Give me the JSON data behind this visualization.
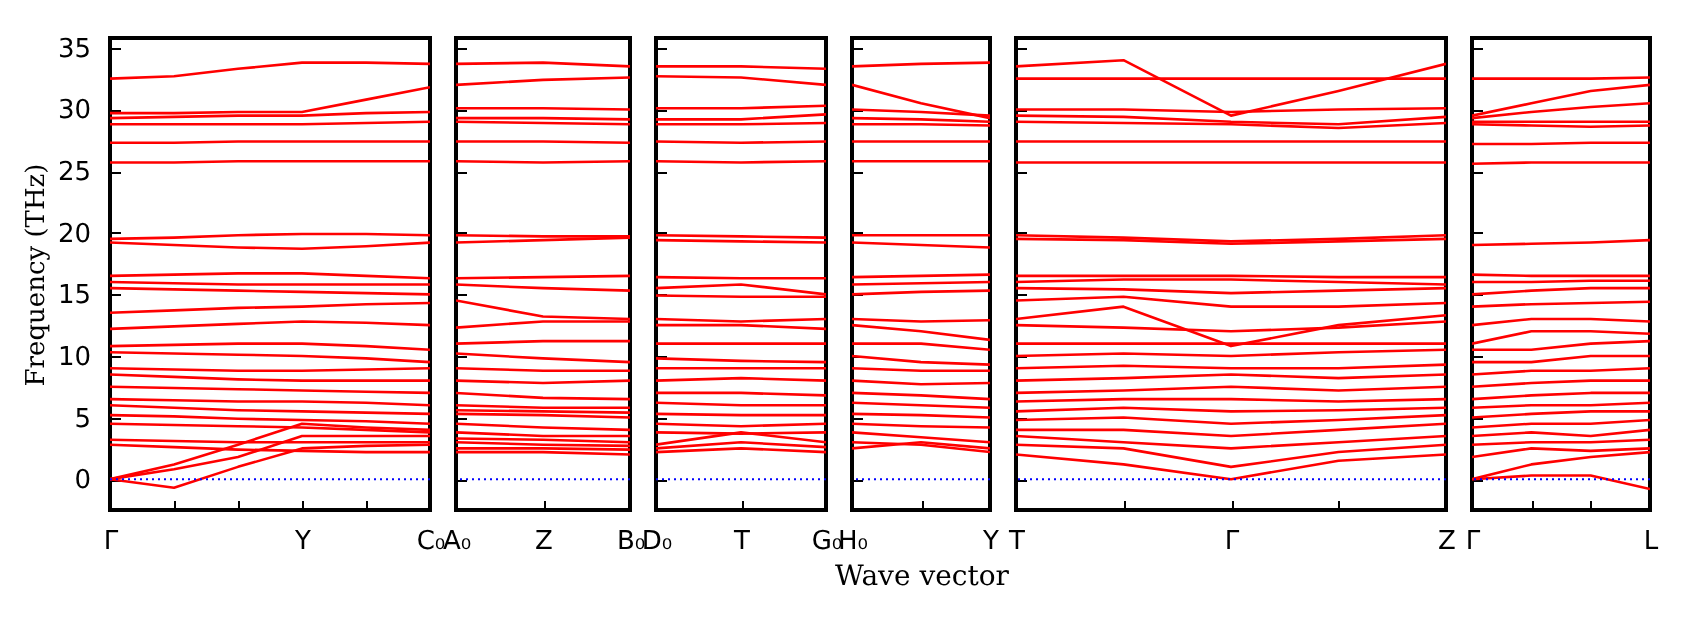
{
  "chart_data": [
    {
      "type": "line",
      "ylabel": "Frequency (THz)",
      "categories": [
        "Γ",
        null,
        null,
        "Y",
        null,
        "C₀"
      ],
      "ylim": [
        -2.5,
        35.8
      ],
      "yticks": [
        0,
        5,
        10,
        15,
        20,
        25,
        30,
        35
      ],
      "grid": false,
      "marker": "none",
      "line_style": "solid",
      "ref_lines": [
        {
          "axis": "y",
          "value": 0,
          "color": "#0000ff",
          "line_style": "dotted"
        }
      ],
      "series": [
        {
          "color": "#ff0000",
          "values": [
            32.5,
            32.7,
            33.3,
            33.8,
            33.8,
            33.7
          ]
        },
        {
          "color": "#ff0000",
          "values": [
            29.7,
            29.7,
            29.8,
            29.8,
            30.8,
            31.8
          ]
        },
        {
          "color": "#ff0000",
          "values": [
            29.3,
            29.4,
            29.5,
            29.5,
            29.7,
            29.8
          ]
        },
        {
          "color": "#ff0000",
          "values": [
            28.8,
            28.8,
            28.8,
            28.8,
            28.9,
            29.0
          ]
        },
        {
          "color": "#ff0000",
          "values": [
            27.3,
            27.3,
            27.4,
            27.4,
            27.4,
            27.4
          ]
        },
        {
          "color": "#ff0000",
          "values": [
            25.7,
            25.7,
            25.8,
            25.8,
            25.8,
            25.8
          ]
        },
        {
          "color": "#ff0000",
          "values": [
            19.5,
            19.6,
            19.8,
            19.9,
            19.9,
            19.8
          ]
        },
        {
          "color": "#ff0000",
          "values": [
            19.2,
            19.0,
            18.8,
            18.7,
            18.9,
            19.2
          ]
        },
        {
          "color": "#ff0000",
          "values": [
            16.5,
            16.6,
            16.7,
            16.7,
            16.5,
            16.3
          ]
        },
        {
          "color": "#ff0000",
          "values": [
            16.0,
            15.9,
            15.8,
            15.8,
            15.8,
            15.8
          ]
        },
        {
          "color": "#ff0000",
          "values": [
            15.5,
            15.4,
            15.3,
            15.2,
            15.1,
            15.0
          ]
        },
        {
          "color": "#ff0000",
          "values": [
            13.5,
            13.7,
            13.9,
            14.0,
            14.2,
            14.3
          ]
        },
        {
          "color": "#ff0000",
          "values": [
            12.2,
            12.4,
            12.6,
            12.8,
            12.7,
            12.5
          ]
        },
        {
          "color": "#ff0000",
          "values": [
            10.8,
            10.9,
            11.0,
            11.0,
            10.8,
            10.5
          ]
        },
        {
          "color": "#ff0000",
          "values": [
            10.3,
            10.2,
            10.1,
            10.0,
            9.8,
            9.5
          ]
        },
        {
          "color": "#ff0000",
          "values": [
            9.0,
            8.9,
            8.8,
            8.8,
            8.9,
            9.0
          ]
        },
        {
          "color": "#ff0000",
          "values": [
            8.5,
            8.3,
            8.1,
            8.0,
            8.0,
            8.0
          ]
        },
        {
          "color": "#ff0000",
          "values": [
            7.5,
            7.4,
            7.3,
            7.2,
            7.1,
            7.0
          ]
        },
        {
          "color": "#ff0000",
          "values": [
            6.5,
            6.4,
            6.3,
            6.3,
            6.2,
            6.0
          ]
        },
        {
          "color": "#ff0000",
          "values": [
            6.0,
            5.8,
            5.6,
            5.5,
            5.4,
            5.3
          ]
        },
        {
          "color": "#ff0000",
          "values": [
            5.2,
            5.1,
            4.9,
            4.8,
            4.7,
            4.5
          ]
        },
        {
          "color": "#ff0000",
          "values": [
            4.5,
            4.4,
            4.3,
            4.2,
            4.0,
            3.8
          ]
        },
        {
          "color": "#ff0000",
          "values": [
            3.2,
            3.1,
            3.0,
            3.0,
            3.0,
            3.0
          ]
        },
        {
          "color": "#ff0000",
          "values": [
            2.8,
            2.6,
            2.4,
            2.3,
            2.2,
            2.2
          ]
        },
        {
          "color": "#ff0000",
          "values": [
            0,
            -0.7,
            1.0,
            2.5,
            2.7,
            2.8
          ]
        },
        {
          "color": "#ff0000",
          "values": [
            0,
            0.8,
            1.8,
            3.5,
            3.5,
            3.5
          ]
        },
        {
          "color": "#ff0000",
          "values": [
            0,
            1.2,
            2.8,
            4.5,
            4.2,
            4.0
          ]
        }
      ]
    },
    {
      "type": "line",
      "categories": [
        "A₀",
        "Z",
        "B₀"
      ],
      "ylim": [
        -2.5,
        35.8
      ],
      "yticks": [
        0,
        5,
        10,
        15,
        20,
        25,
        30,
        35
      ],
      "tick_labels": "x",
      "grid": false,
      "marker": "none",
      "line_style": "solid",
      "ref_lines": [
        {
          "axis": "y",
          "value": 0,
          "color": "#0000ff",
          "line_style": "dotted"
        }
      ],
      "series": [
        {
          "color": "#ff0000",
          "values": [
            33.7,
            33.8,
            33.5
          ]
        },
        {
          "color": "#ff0000",
          "values": [
            32.0,
            32.4,
            32.6
          ]
        },
        {
          "color": "#ff0000",
          "values": [
            30.1,
            30.1,
            30.0
          ]
        },
        {
          "color": "#ff0000",
          "values": [
            29.3,
            29.3,
            29.2
          ]
        },
        {
          "color": "#ff0000",
          "values": [
            29.0,
            28.9,
            28.8
          ]
        },
        {
          "color": "#ff0000",
          "values": [
            27.4,
            27.4,
            27.3
          ]
        },
        {
          "color": "#ff0000",
          "values": [
            25.8,
            25.7,
            25.8
          ]
        },
        {
          "color": "#ff0000",
          "values": [
            19.8,
            19.7,
            19.7
          ]
        },
        {
          "color": "#ff0000",
          "values": [
            19.2,
            19.4,
            19.6
          ]
        },
        {
          "color": "#ff0000",
          "values": [
            16.3,
            16.4,
            16.5
          ]
        },
        {
          "color": "#ff0000",
          "values": [
            15.8,
            15.5,
            15.3
          ]
        },
        {
          "color": "#ff0000",
          "values": [
            14.5,
            13.2,
            13.0
          ]
        },
        {
          "color": "#ff0000",
          "values": [
            12.3,
            12.8,
            12.8
          ]
        },
        {
          "color": "#ff0000",
          "values": [
            11.0,
            11.2,
            11.2
          ]
        },
        {
          "color": "#ff0000",
          "values": [
            10.2,
            9.8,
            9.5
          ]
        },
        {
          "color": "#ff0000",
          "values": [
            9.0,
            8.8,
            8.8
          ]
        },
        {
          "color": "#ff0000",
          "values": [
            8.0,
            7.8,
            8.0
          ]
        },
        {
          "color": "#ff0000",
          "values": [
            7.0,
            6.6,
            6.5
          ]
        },
        {
          "color": "#ff0000",
          "values": [
            6.0,
            5.8,
            5.8
          ]
        },
        {
          "color": "#ff0000",
          "values": [
            5.6,
            5.5,
            5.4
          ]
        },
        {
          "color": "#ff0000",
          "values": [
            5.3,
            5.2,
            5.0
          ]
        },
        {
          "color": "#ff0000",
          "values": [
            4.5,
            4.2,
            4.0
          ]
        },
        {
          "color": "#ff0000",
          "values": [
            3.8,
            3.5,
            3.5
          ]
        },
        {
          "color": "#ff0000",
          "values": [
            3.3,
            3.2,
            3.0
          ]
        },
        {
          "color": "#ff0000",
          "values": [
            3.0,
            2.8,
            2.7
          ]
        },
        {
          "color": "#ff0000",
          "values": [
            2.5,
            2.5,
            2.4
          ]
        },
        {
          "color": "#ff0000",
          "values": [
            2.2,
            2.2,
            2.0
          ]
        }
      ]
    },
    {
      "type": "line",
      "categories": [
        "D₀",
        "T",
        "G₀"
      ],
      "ylim": [
        -2.5,
        35.8
      ],
      "yticks": [
        0,
        5,
        10,
        15,
        20,
        25,
        30,
        35
      ],
      "tick_labels": "x",
      "grid": false,
      "marker": "none",
      "line_style": "solid",
      "ref_lines": [
        {
          "axis": "y",
          "value": 0,
          "color": "#0000ff",
          "line_style": "dotted"
        }
      ],
      "series": [
        {
          "color": "#ff0000",
          "values": [
            33.5,
            33.5,
            33.3
          ]
        },
        {
          "color": "#ff0000",
          "values": [
            32.7,
            32.6,
            32.0
          ]
        },
        {
          "color": "#ff0000",
          "values": [
            30.1,
            30.1,
            30.3
          ]
        },
        {
          "color": "#ff0000",
          "values": [
            29.2,
            29.2,
            29.6
          ]
        },
        {
          "color": "#ff0000",
          "values": [
            28.8,
            28.8,
            28.9
          ]
        },
        {
          "color": "#ff0000",
          "values": [
            27.4,
            27.3,
            27.4
          ]
        },
        {
          "color": "#ff0000",
          "values": [
            25.8,
            25.7,
            25.8
          ]
        },
        {
          "color": "#ff0000",
          "values": [
            19.8,
            19.7,
            19.6
          ]
        },
        {
          "color": "#ff0000",
          "values": [
            19.4,
            19.3,
            19.2
          ]
        },
        {
          "color": "#ff0000",
          "values": [
            16.4,
            16.3,
            16.3
          ]
        },
        {
          "color": "#ff0000",
          "values": [
            15.5,
            15.8,
            15.0
          ]
        },
        {
          "color": "#ff0000",
          "values": [
            14.9,
            14.8,
            14.8
          ]
        },
        {
          "color": "#ff0000",
          "values": [
            13.0,
            12.8,
            13.0
          ]
        },
        {
          "color": "#ff0000",
          "values": [
            12.5,
            12.5,
            12.2
          ]
        },
        {
          "color": "#ff0000",
          "values": [
            11.0,
            11.0,
            11.0
          ]
        },
        {
          "color": "#ff0000",
          "values": [
            9.8,
            9.6,
            9.5
          ]
        },
        {
          "color": "#ff0000",
          "values": [
            9.0,
            9.0,
            9.0
          ]
        },
        {
          "color": "#ff0000",
          "values": [
            8.0,
            8.2,
            8.0
          ]
        },
        {
          "color": "#ff0000",
          "values": [
            7.0,
            7.0,
            6.8
          ]
        },
        {
          "color": "#ff0000",
          "values": [
            6.2,
            6.0,
            6.0
          ]
        },
        {
          "color": "#ff0000",
          "values": [
            5.3,
            5.2,
            5.2
          ]
        },
        {
          "color": "#ff0000",
          "values": [
            4.5,
            4.3,
            4.5
          ]
        },
        {
          "color": "#ff0000",
          "values": [
            3.8,
            3.7,
            3.8
          ]
        },
        {
          "color": "#ff0000",
          "values": [
            2.8,
            3.8,
            3.0
          ]
        },
        {
          "color": "#ff0000",
          "values": [
            2.5,
            3.0,
            2.6
          ]
        },
        {
          "color": "#ff0000",
          "values": [
            2.2,
            2.5,
            2.2
          ]
        }
      ]
    },
    {
      "type": "line",
      "xlabel": "Wave vector",
      "categories": [
        "H₀",
        null,
        "Y"
      ],
      "ylim": [
        -2.5,
        35.8
      ],
      "yticks": [
        0,
        5,
        10,
        15,
        20,
        25,
        30,
        35
      ],
      "tick_labels": "x",
      "grid": false,
      "marker": "none",
      "line_style": "solid",
      "ref_lines": [
        {
          "axis": "y",
          "value": 0,
          "color": "#0000ff",
          "line_style": "dotted"
        }
      ],
      "series": [
        {
          "color": "#ff0000",
          "values": [
            33.5,
            33.7,
            33.8
          ]
        },
        {
          "color": "#ff0000",
          "values": [
            32.0,
            30.5,
            29.3
          ]
        },
        {
          "color": "#ff0000",
          "values": [
            30.0,
            29.8,
            29.5
          ]
        },
        {
          "color": "#ff0000",
          "values": [
            29.3,
            29.2,
            29.0
          ]
        },
        {
          "color": "#ff0000",
          "values": [
            28.8,
            28.8,
            28.7
          ]
        },
        {
          "color": "#ff0000",
          "values": [
            27.4,
            27.4,
            27.4
          ]
        },
        {
          "color": "#ff0000",
          "values": [
            25.8,
            25.8,
            25.8
          ]
        },
        {
          "color": "#ff0000",
          "values": [
            19.8,
            19.8,
            19.8
          ]
        },
        {
          "color": "#ff0000",
          "values": [
            19.2,
            19.0,
            18.8
          ]
        },
        {
          "color": "#ff0000",
          "values": [
            16.4,
            16.5,
            16.6
          ]
        },
        {
          "color": "#ff0000",
          "values": [
            15.8,
            15.9,
            16.0
          ]
        },
        {
          "color": "#ff0000",
          "values": [
            15.0,
            15.2,
            15.3
          ]
        },
        {
          "color": "#ff0000",
          "values": [
            13.0,
            12.8,
            12.9
          ]
        },
        {
          "color": "#ff0000",
          "values": [
            12.5,
            12.0,
            11.3
          ]
        },
        {
          "color": "#ff0000",
          "values": [
            11.0,
            11.0,
            10.5
          ]
        },
        {
          "color": "#ff0000",
          "values": [
            10.0,
            9.5,
            9.3
          ]
        },
        {
          "color": "#ff0000",
          "values": [
            9.0,
            8.8,
            8.8
          ]
        },
        {
          "color": "#ff0000",
          "values": [
            8.0,
            7.7,
            7.8
          ]
        },
        {
          "color": "#ff0000",
          "values": [
            7.0,
            6.8,
            6.5
          ]
        },
        {
          "color": "#ff0000",
          "values": [
            6.2,
            6.0,
            5.8
          ]
        },
        {
          "color": "#ff0000",
          "values": [
            5.3,
            5.2,
            5.0
          ]
        },
        {
          "color": "#ff0000",
          "values": [
            4.5,
            4.3,
            4.2
          ]
        },
        {
          "color": "#ff0000",
          "values": [
            3.8,
            3.4,
            3.0
          ]
        },
        {
          "color": "#ff0000",
          "values": [
            3.0,
            2.8,
            2.2
          ]
        },
        {
          "color": "#ff0000",
          "values": [
            2.5,
            3.0,
            2.5
          ]
        }
      ]
    },
    {
      "type": "line",
      "categories": [
        "T",
        null,
        "Γ",
        null,
        "Z"
      ],
      "ylim": [
        -2.5,
        35.8
      ],
      "yticks": [
        0,
        5,
        10,
        15,
        20,
        25,
        30,
        35
      ],
      "tick_labels": "x",
      "grid": false,
      "marker": "none",
      "line_style": "solid",
      "ref_lines": [
        {
          "axis": "y",
          "value": 0,
          "color": "#0000ff",
          "line_style": "dotted"
        }
      ],
      "series": [
        {
          "color": "#ff0000",
          "values": [
            33.5,
            34.0,
            29.5,
            31.5,
            33.7
          ]
        },
        {
          "color": "#ff0000",
          "values": [
            32.5,
            32.5,
            32.5,
            32.5,
            32.5
          ]
        },
        {
          "color": "#ff0000",
          "values": [
            30.0,
            30.0,
            29.8,
            30.0,
            30.1
          ]
        },
        {
          "color": "#ff0000",
          "values": [
            29.5,
            29.4,
            29.0,
            28.8,
            29.4
          ]
        },
        {
          "color": "#ff0000",
          "values": [
            29.0,
            28.9,
            28.8,
            28.5,
            28.9
          ]
        },
        {
          "color": "#ff0000",
          "values": [
            27.4,
            27.4,
            27.4,
            27.4,
            27.4
          ]
        },
        {
          "color": "#ff0000",
          "values": [
            25.7,
            25.7,
            25.7,
            25.7,
            25.7
          ]
        },
        {
          "color": "#ff0000",
          "values": [
            19.8,
            19.6,
            19.3,
            19.5,
            19.8
          ]
        },
        {
          "color": "#ff0000",
          "values": [
            19.5,
            19.4,
            19.1,
            19.3,
            19.5
          ]
        },
        {
          "color": "#ff0000",
          "values": [
            16.5,
            16.5,
            16.5,
            16.4,
            16.4
          ]
        },
        {
          "color": "#ff0000",
          "values": [
            16.0,
            16.2,
            16.2,
            16.0,
            15.8
          ]
        },
        {
          "color": "#ff0000",
          "values": [
            15.5,
            15.4,
            15.1,
            15.3,
            15.5
          ]
        },
        {
          "color": "#ff0000",
          "values": [
            14.5,
            14.8,
            14.0,
            14.0,
            14.3
          ]
        },
        {
          "color": "#ff0000",
          "values": [
            13.0,
            14.0,
            10.8,
            12.5,
            13.3
          ]
        },
        {
          "color": "#ff0000",
          "values": [
            12.5,
            12.3,
            12.0,
            12.3,
            12.8
          ]
        },
        {
          "color": "#ff0000",
          "values": [
            11.0,
            11.0,
            11.0,
            11.0,
            11.0
          ]
        },
        {
          "color": "#ff0000",
          "values": [
            10.0,
            10.2,
            10.0,
            10.3,
            10.5
          ]
        },
        {
          "color": "#ff0000",
          "values": [
            9.0,
            9.2,
            9.0,
            9.0,
            9.3
          ]
        },
        {
          "color": "#ff0000",
          "values": [
            8.0,
            8.2,
            8.5,
            8.2,
            8.5
          ]
        },
        {
          "color": "#ff0000",
          "values": [
            7.0,
            7.2,
            7.5,
            7.2,
            7.5
          ]
        },
        {
          "color": "#ff0000",
          "values": [
            6.3,
            6.5,
            6.5,
            6.3,
            6.5
          ]
        },
        {
          "color": "#ff0000",
          "values": [
            5.5,
            5.8,
            5.5,
            5.6,
            5.8
          ]
        },
        {
          "color": "#ff0000",
          "values": [
            4.8,
            5.0,
            4.5,
            4.8,
            5.2
          ]
        },
        {
          "color": "#ff0000",
          "values": [
            4.0,
            4.0,
            3.5,
            4.0,
            4.5
          ]
        },
        {
          "color": "#ff0000",
          "values": [
            3.5,
            3.0,
            2.5,
            3.0,
            3.5
          ]
        },
        {
          "color": "#ff0000",
          "values": [
            2.8,
            2.5,
            1.0,
            2.2,
            2.8
          ]
        },
        {
          "color": "#ff0000",
          "values": [
            2.0,
            1.2,
            0,
            1.5,
            2.0
          ]
        }
      ]
    },
    {
      "type": "line",
      "categories": [
        "Γ",
        null,
        null,
        "L"
      ],
      "ylim": [
        -2.5,
        35.8
      ],
      "yticks": [
        0,
        5,
        10,
        15,
        20,
        25,
        30,
        35
      ],
      "tick_labels": "x",
      "grid": false,
      "marker": "none",
      "line_style": "solid",
      "ref_lines": [
        {
          "axis": "y",
          "value": 0,
          "color": "#0000ff",
          "line_style": "dotted"
        }
      ],
      "series": [
        {
          "color": "#ff0000",
          "values": [
            32.5,
            32.5,
            32.5,
            32.6
          ]
        },
        {
          "color": "#ff0000",
          "values": [
            29.5,
            30.5,
            31.5,
            32.0
          ]
        },
        {
          "color": "#ff0000",
          "values": [
            29.3,
            29.8,
            30.2,
            30.5
          ]
        },
        {
          "color": "#ff0000",
          "values": [
            29.0,
            29.0,
            29.0,
            29.0
          ]
        },
        {
          "color": "#ff0000",
          "values": [
            28.8,
            28.7,
            28.6,
            28.7
          ]
        },
        {
          "color": "#ff0000",
          "values": [
            27.2,
            27.2,
            27.3,
            27.3
          ]
        },
        {
          "color": "#ff0000",
          "values": [
            25.6,
            25.7,
            25.7,
            25.7
          ]
        },
        {
          "color": "#ff0000",
          "values": [
            19.0,
            19.1,
            19.2,
            19.4
          ]
        },
        {
          "color": "#ff0000",
          "values": [
            16.6,
            16.5,
            16.5,
            16.5
          ]
        },
        {
          "color": "#ff0000",
          "values": [
            16.0,
            16.0,
            16.1,
            16.1
          ]
        },
        {
          "color": "#ff0000",
          "values": [
            15.0,
            15.3,
            15.5,
            15.5
          ]
        },
        {
          "color": "#ff0000",
          "values": [
            14.0,
            14.2,
            14.3,
            14.4
          ]
        },
        {
          "color": "#ff0000",
          "values": [
            12.5,
            13.0,
            13.0,
            12.8
          ]
        },
        {
          "color": "#ff0000",
          "values": [
            11.0,
            12.0,
            12.0,
            11.8
          ]
        },
        {
          "color": "#ff0000",
          "values": [
            10.5,
            10.5,
            11.0,
            11.2
          ]
        },
        {
          "color": "#ff0000",
          "values": [
            9.5,
            9.5,
            10.0,
            10.0
          ]
        },
        {
          "color": "#ff0000",
          "values": [
            8.5,
            8.8,
            8.8,
            9.0
          ]
        },
        {
          "color": "#ff0000",
          "values": [
            7.5,
            7.8,
            8.0,
            8.0
          ]
        },
        {
          "color": "#ff0000",
          "values": [
            6.5,
            6.8,
            7.0,
            7.0
          ]
        },
        {
          "color": "#ff0000",
          "values": [
            5.8,
            6.0,
            6.0,
            6.2
          ]
        },
        {
          "color": "#ff0000",
          "values": [
            5.0,
            5.3,
            5.5,
            5.5
          ]
        },
        {
          "color": "#ff0000",
          "values": [
            4.2,
            4.5,
            4.5,
            4.8
          ]
        },
        {
          "color": "#ff0000",
          "values": [
            3.5,
            3.8,
            3.5,
            4.0
          ]
        },
        {
          "color": "#ff0000",
          "values": [
            2.8,
            3.0,
            3.0,
            3.2
          ]
        },
        {
          "color": "#ff0000",
          "values": [
            1.8,
            2.5,
            2.3,
            2.5
          ]
        },
        {
          "color": "#ff0000",
          "values": [
            0,
            1.2,
            1.8,
            2.2
          ]
        },
        {
          "color": "#ff0000",
          "values": [
            0,
            0.3,
            0.3,
            -0.8
          ]
        }
      ]
    }
  ]
}
